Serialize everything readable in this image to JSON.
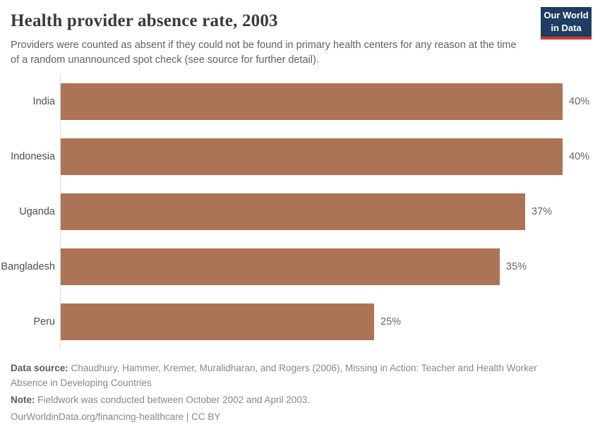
{
  "header": {
    "title": "Health provider absence rate, 2003",
    "subtitle": "Providers were counted as absent if they could not be found in primary health centers for any reason at the time of a random unannounced spot check (see source for further detail).",
    "logo": {
      "line1": "Our World",
      "line2": "in Data"
    }
  },
  "chart_data": {
    "type": "bar",
    "orientation": "horizontal",
    "title": "Health provider absence rate, 2003",
    "categories": [
      "India",
      "Indonesia",
      "Uganda",
      "Bangladesh",
      "Peru"
    ],
    "values": [
      40,
      40,
      37,
      35,
      25
    ],
    "value_labels": [
      "40%",
      "40%",
      "37%",
      "35%",
      "25%"
    ],
    "unit": "%",
    "xlim": [
      0,
      40
    ],
    "grid": false,
    "legend": "none",
    "bar_color": "#ad7356"
  },
  "footer": {
    "data_source_label": "Data source:",
    "data_source_text": "Chaudhury, Hammer, Kremer, Muralidharan, and Rogers (2006), Missing in Action: Teacher and Health Worker Absence in Developing Countries",
    "note_label": "Note:",
    "note_text": "Fieldwork was conducted between October 2002 and April 2003.",
    "url_text": "OurWorldinData.org/financing-healthcare | CC BY"
  },
  "colors": {
    "bar": "#ad7356",
    "logo_navy": "#1d3d63",
    "logo_red": "#cd3735",
    "axis_line": "#dcdcdc",
    "title_text": "#3a3a3a",
    "subtitle_text": "#616161",
    "footer_text": "#878787"
  }
}
